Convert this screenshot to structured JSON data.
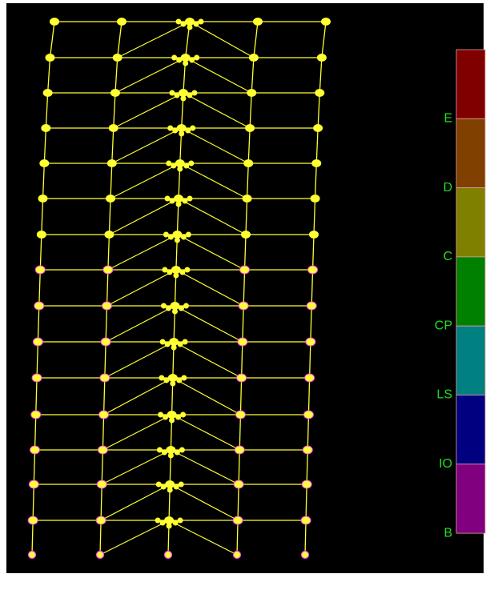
{
  "legend": [
    {
      "label": "E",
      "color": "#800000"
    },
    {
      "label": "D",
      "color": "#804000"
    },
    {
      "label": "C",
      "color": "#808000"
    },
    {
      "label": "CP",
      "color": "#008000"
    },
    {
      "label": "LS",
      "color": "#008080"
    },
    {
      "label": "IO",
      "color": "#000080"
    },
    {
      "label": "B",
      "color": "#800080"
    }
  ]
}
